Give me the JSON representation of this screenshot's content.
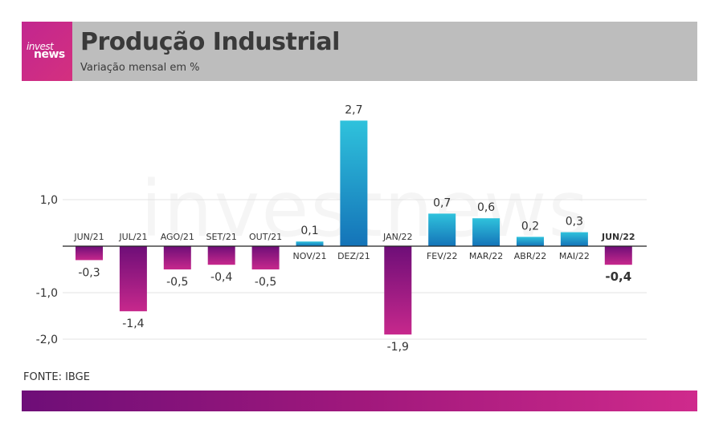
{
  "header": {
    "logo_line1": "invest",
    "logo_line2": "news",
    "title": "Produção Industrial",
    "subtitle": "Variação mensal em %"
  },
  "watermark": "investnews",
  "source": "FONTE: IBGE",
  "colors": {
    "positive_top": "#2fc2dc",
    "positive_bottom": "#1473b8",
    "negative_top": "#6e0e78",
    "negative_bottom": "#c7288c",
    "header_bg": "#bdbdbd"
  },
  "chart_data": {
    "type": "bar",
    "title": "Produção Industrial",
    "subtitle": "Variação mensal em %",
    "categories": [
      "JUN/21",
      "JUL/21",
      "AGO/21",
      "SET/21",
      "OUT/21",
      "NOV/21",
      "DEZ/21",
      "JAN/22",
      "FEV/22",
      "MAR/22",
      "ABR/22",
      "MAI/22",
      "JUN/22"
    ],
    "values": [
      -0.3,
      -1.4,
      -0.5,
      -0.4,
      -0.5,
      0.1,
      2.7,
      -1.9,
      0.7,
      0.6,
      0.2,
      0.3,
      -0.4
    ],
    "value_labels": [
      "-0,3",
      "-1,4",
      "-0,5",
      "-0,4",
      "-0,5",
      "0,1",
      "2,7",
      "-1,9",
      "0,7",
      "0,6",
      "0,2",
      "0,3",
      "-0,4"
    ],
    "highlight_index": 12,
    "yticks": [
      1.0,
      -1.0,
      -2.0
    ],
    "ytick_labels": [
      "1,0",
      "-1,0",
      "-2,0"
    ],
    "ylim": [
      -2.0,
      2.7
    ],
    "grid": true
  }
}
